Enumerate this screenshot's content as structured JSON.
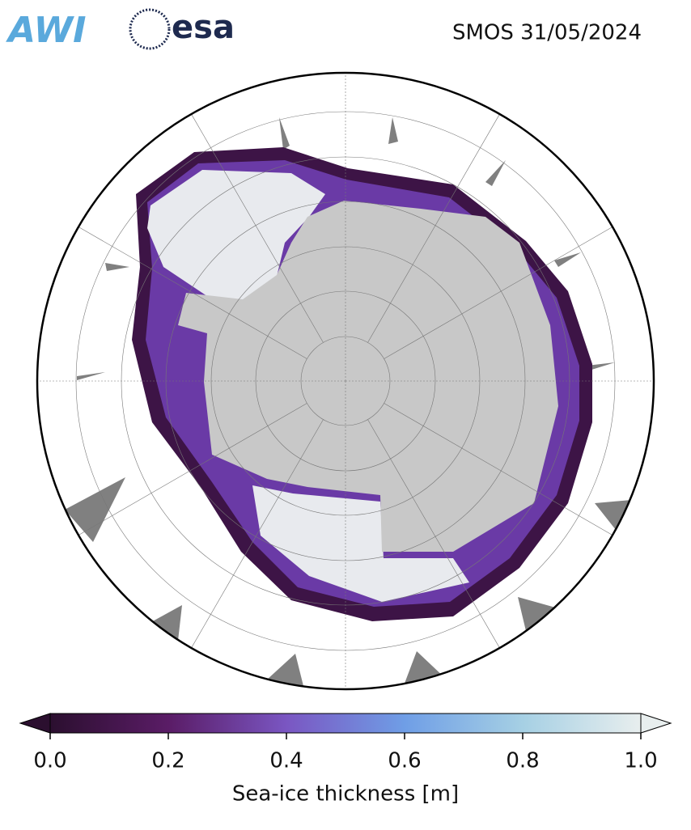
{
  "header": {
    "logos": [
      "AWI",
      "esa"
    ],
    "title": "SMOS 31/05/2024"
  },
  "colorbar": {
    "label": "Sea-ice thickness [m]",
    "xlim": [
      0,
      1
    ],
    "xticks": [
      {
        "value": 0,
        "label": "0.0"
      },
      0.2,
      0.4,
      0.6,
      0.8,
      {
        "value": 1,
        "label": "1.0"
      }
    ],
    "colors": [
      "#2b0f2f",
      "#5a1c66",
      "#7a56c2",
      "#6f9ee6",
      "#a6d0e4",
      "#e8eeee"
    ]
  }
}
